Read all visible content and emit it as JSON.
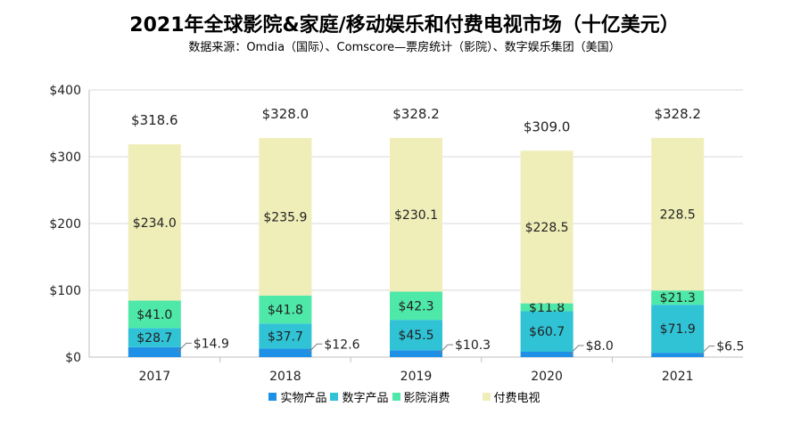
{
  "title": "2021年全球影院&家庭/移动娱乐和付费电视市场（十亿美元）",
  "subtitle": "数据来源：Omdia（国际）、Comscore—票房统计（影院）、数字娱乐集团（美国）",
  "colors": {
    "physical": "#1e90e6",
    "digital": "#30c3d6",
    "cinema": "#4ee8a8",
    "paytv": "#efeeb8"
  },
  "chart_data": {
    "type": "bar",
    "stacked": true,
    "categories": [
      "2017",
      "2018",
      "2019",
      "2020",
      "2021"
    ],
    "ylim": [
      0,
      400
    ],
    "yticks": [
      "$0",
      "$100",
      "$200",
      "$300",
      "$400"
    ],
    "series": [
      {
        "name": "实物产品",
        "values": [
          14.9,
          12.6,
          10.3,
          8.0,
          6.5
        ],
        "labels": [
          "$14.9",
          "$12.6",
          "$10.3",
          "$8.0",
          "$6.5"
        ]
      },
      {
        "name": "数字产品",
        "values": [
          28.7,
          37.7,
          45.5,
          60.7,
          71.9
        ],
        "labels": [
          "$28.7",
          "$37.7",
          "$45.5",
          "$60.7",
          "$71.9"
        ]
      },
      {
        "name": "影院消费",
        "values": [
          41.0,
          41.8,
          42.3,
          11.8,
          21.3
        ],
        "labels": [
          "$41.0",
          "$41.8",
          "$42.3",
          "$11.8",
          "$21.3"
        ]
      },
      {
        "name": "付费电视",
        "values": [
          234.0,
          235.9,
          230.1,
          228.5,
          228.5
        ],
        "labels": [
          "$234.0",
          "$235.9",
          "$230.1",
          "$228.5",
          "228.5"
        ]
      }
    ],
    "totals": [
      318.6,
      328.0,
      328.2,
      309.0,
      328.2
    ],
    "total_labels": [
      "$318.6",
      "$328.0",
      "$328.2",
      "$309.0",
      "$328.2"
    ],
    "legend": "bottom",
    "grid": true
  }
}
